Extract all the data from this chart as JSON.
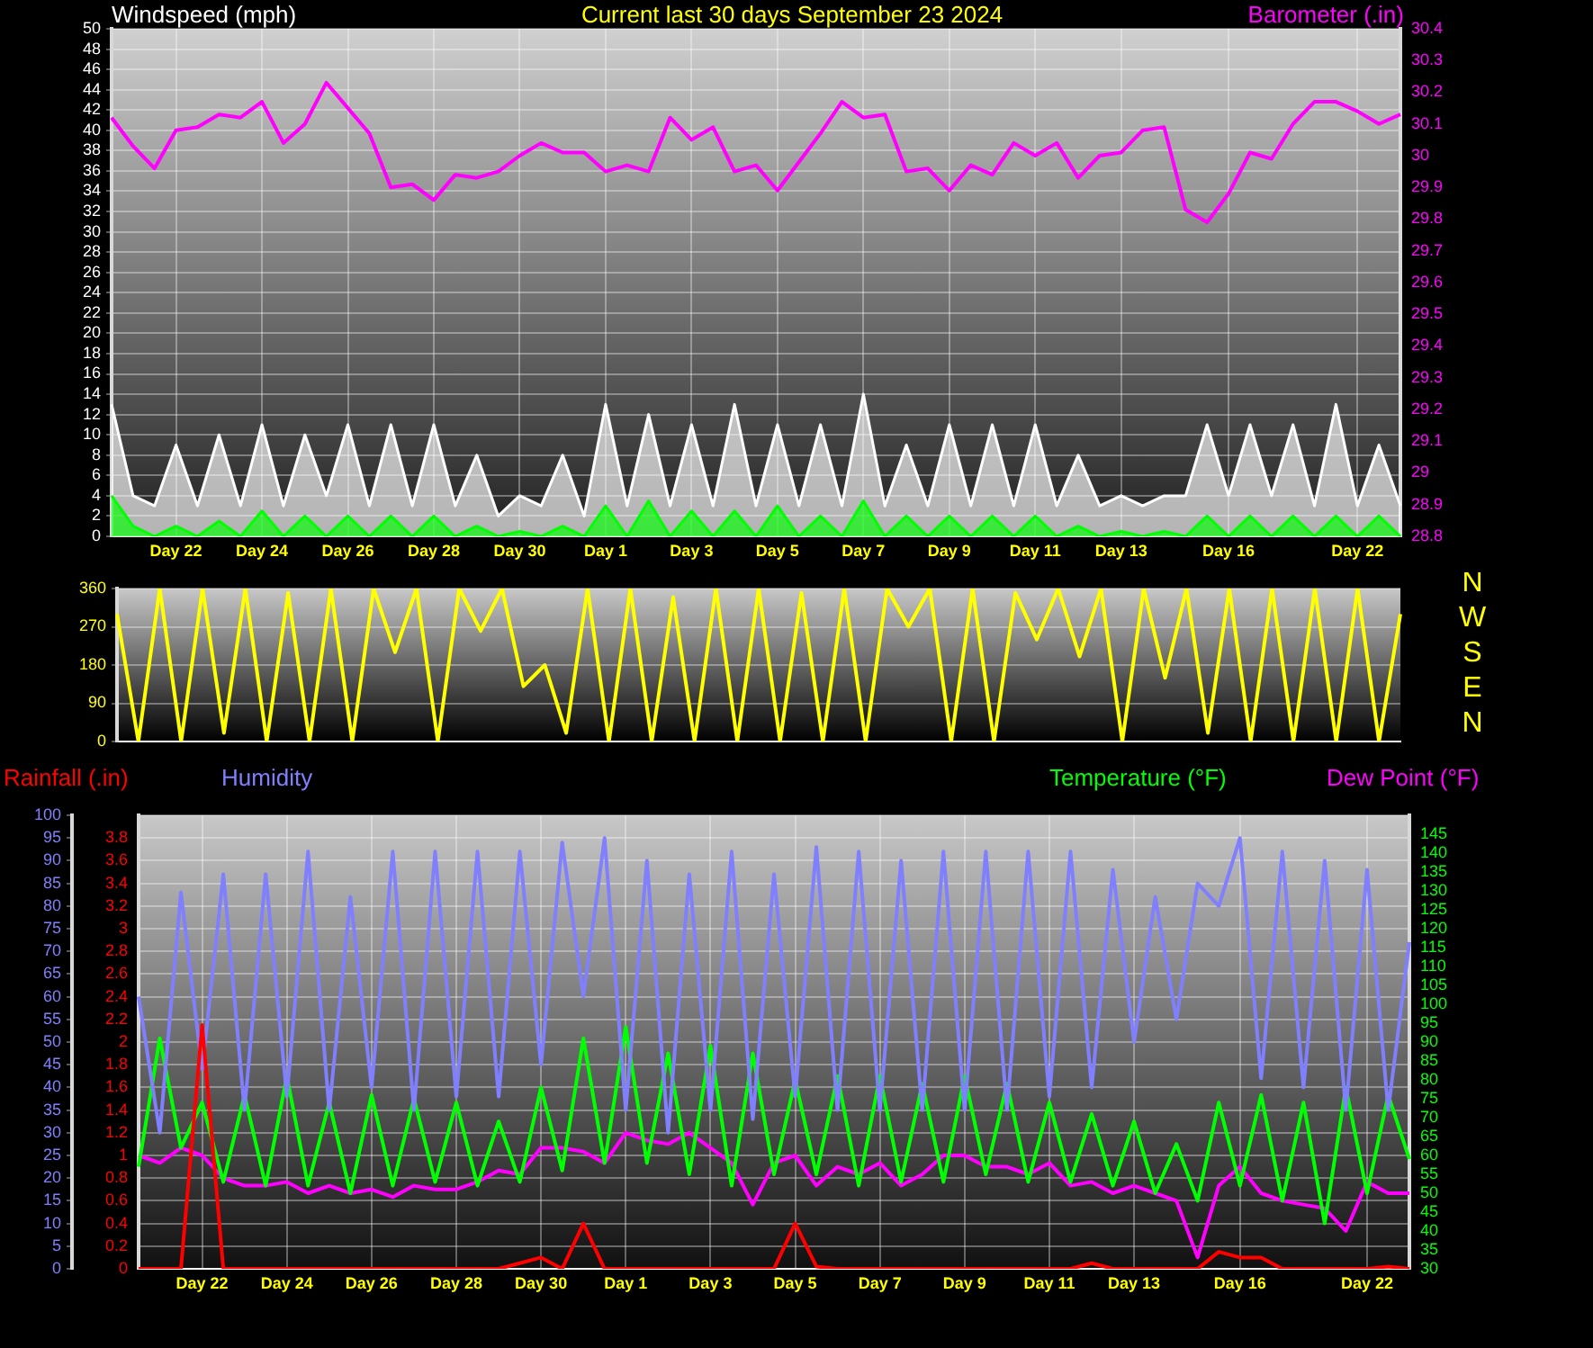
{
  "chart_data": [
    {
      "type": "line",
      "title": "Current last 30 days September 23 2024",
      "ylabel": "Windspeed (mph)",
      "y2label": "Barometer (.in)",
      "categories": [
        null,
        null,
        null,
        "Day 22",
        null,
        null,
        null,
        "Day 24",
        null,
        null,
        null,
        "Day 26",
        null,
        null,
        null,
        "Day 28",
        null,
        null,
        null,
        "Day 30",
        null,
        null,
        null,
        "Day 1",
        null,
        null,
        null,
        "Day 3",
        null,
        null,
        null,
        "Day 5",
        null,
        null,
        null,
        "Day 7",
        null,
        null,
        null,
        "Day 9",
        null,
        null,
        null,
        "Day 11",
        null,
        null,
        null,
        "Day 13",
        null,
        null,
        null,
        null,
        "Day 16",
        null,
        null,
        null,
        null,
        null,
        "Day 22",
        null,
        null
      ],
      "ylim": [
        0,
        50
      ],
      "yticks": [
        0,
        2,
        4,
        6,
        8,
        10,
        12,
        14,
        16,
        18,
        20,
        22,
        24,
        26,
        28,
        30,
        32,
        34,
        36,
        38,
        40,
        42,
        44,
        46,
        48,
        50
      ],
      "y2lim": [
        28.8,
        30.4
      ],
      "y2ticks": [
        28.8,
        28.9,
        29,
        29.1,
        29.2,
        29.3,
        29.4,
        29.5,
        29.6,
        29.7,
        29.8,
        29.9,
        30,
        30.1,
        30.2,
        30.3,
        30.4
      ],
      "grid": true,
      "series": [
        {
          "color": "#ff00ff",
          "axis": "y2",
          "values": [
            30.12,
            30.03,
            29.96,
            30.08,
            30.09,
            30.13,
            30.12,
            30.17,
            30.04,
            30.1,
            30.23,
            30.15,
            30.07,
            29.9,
            29.91,
            29.86,
            29.94,
            29.93,
            29.95,
            30,
            30.04,
            30.01,
            30.01,
            29.95,
            29.97,
            29.95,
            30.12,
            30.05,
            30.09,
            29.95,
            29.97,
            29.89,
            29.98,
            30.07,
            30.17,
            30.12,
            30.13,
            29.95,
            29.96,
            29.89,
            29.97,
            29.94,
            30.04,
            30,
            30.04,
            29.93,
            30,
            30.01,
            30.08,
            30.09,
            29.83,
            29.79,
            29.88,
            30.01,
            29.99,
            30.1,
            30.17,
            30.17,
            30.14,
            30.1,
            30.13
          ]
        },
        {
          "type": "area",
          "color": "#00ff00",
          "values": [
            4,
            1,
            0,
            1,
            0,
            1.5,
            0,
            2.5,
            0,
            2,
            0,
            2,
            0,
            2,
            0,
            2,
            0,
            1,
            0,
            0.5,
            0,
            1,
            0,
            3,
            0,
            3.5,
            0,
            2.5,
            0,
            2.5,
            0,
            3,
            0,
            2,
            0,
            3.5,
            0,
            2,
            0,
            2,
            0,
            2,
            0,
            2,
            0,
            1,
            0,
            0.5,
            0,
            0.5,
            0,
            2,
            0,
            2,
            0,
            2,
            0,
            2,
            0,
            2,
            0
          ]
        },
        {
          "type": "area",
          "color": "#ffffff",
          "values": [
            13,
            4,
            3,
            9,
            3,
            10,
            3,
            11,
            3,
            10,
            4,
            11,
            3,
            11,
            3,
            11,
            3,
            8,
            2,
            4,
            3,
            8,
            2,
            13,
            3,
            12,
            3,
            11,
            3,
            13,
            3,
            11,
            3,
            11,
            3,
            14,
            3,
            9,
            3,
            11,
            3,
            11,
            3,
            11,
            3,
            8,
            3,
            4,
            3,
            4,
            4,
            11,
            4,
            11,
            4,
            11,
            3,
            13,
            3,
            9,
            3
          ]
        }
      ]
    },
    {
      "type": "line",
      "tick_labels": "y",
      "grid": "y",
      "categories": [
        null,
        null,
        null,
        null,
        null,
        null,
        null,
        null,
        null,
        null,
        null,
        null,
        null,
        null,
        null,
        null,
        null,
        null,
        null,
        null,
        null,
        null,
        null,
        null,
        null,
        null,
        null,
        null,
        null,
        null,
        null,
        null,
        null,
        null,
        null,
        null,
        null,
        null,
        null,
        null,
        null,
        null,
        null,
        null,
        null,
        null,
        null,
        null,
        null,
        null,
        null,
        null,
        null,
        null,
        null,
        null,
        null,
        null,
        null,
        null,
        null
      ],
      "ylim": [
        0,
        360
      ],
      "yticks": [
        0,
        90,
        180,
        270,
        360
      ],
      "annotations": [
        "N",
        "W",
        "S",
        "E",
        "N"
      ],
      "series": [
        {
          "color": "#ffff00",
          "values": [
            300,
            0,
            360,
            0,
            360,
            20,
            360,
            0,
            350,
            0,
            360,
            0,
            360,
            210,
            360,
            0,
            360,
            260,
            360,
            130,
            180,
            20,
            360,
            0,
            360,
            0,
            340,
            0,
            360,
            0,
            360,
            0,
            350,
            0,
            360,
            0,
            360,
            270,
            360,
            0,
            360,
            0,
            350,
            240,
            360,
            200,
            360,
            0,
            360,
            150,
            360,
            20,
            360,
            0,
            360,
            0,
            360,
            0,
            360,
            0,
            300
          ]
        }
      ]
    },
    {
      "type": "line",
      "legend": "top",
      "grid": true,
      "categories": [
        null,
        null,
        null,
        "Day 22",
        null,
        null,
        null,
        "Day 24",
        null,
        null,
        null,
        "Day 26",
        null,
        null,
        null,
        "Day 28",
        null,
        null,
        null,
        "Day 30",
        null,
        null,
        null,
        "Day 1",
        null,
        null,
        null,
        "Day 3",
        null,
        null,
        null,
        "Day 5",
        null,
        null,
        null,
        "Day 7",
        null,
        null,
        null,
        "Day 9",
        null,
        null,
        null,
        "Day 11",
        null,
        null,
        null,
        "Day 13",
        null,
        null,
        null,
        null,
        "Day 16",
        null,
        null,
        null,
        null,
        null,
        "Day 22",
        null,
        null
      ],
      "ylim": [
        0,
        100
      ],
      "yticks": [
        0,
        5,
        10,
        15,
        20,
        25,
        30,
        35,
        40,
        45,
        50,
        55,
        60,
        65,
        70,
        75,
        80,
        85,
        90,
        95,
        100
      ],
      "y2lim": [
        30,
        150
      ],
      "y2ticks": [
        30,
        35,
        40,
        45,
        50,
        55,
        60,
        65,
        70,
        75,
        80,
        85,
        90,
        95,
        100,
        105,
        110,
        115,
        120,
        125,
        130,
        135,
        140,
        145
      ],
      "y3lim": [
        0,
        4
      ],
      "y3ticks": [
        0,
        0.2,
        0.4,
        0.6,
        0.8,
        1,
        1.2,
        1.4,
        1.6,
        1.8,
        2,
        2.2,
        2.4,
        2.6,
        2.8,
        3,
        3.2,
        3.4,
        3.6,
        3.8
      ],
      "series": [
        {
          "name": "Rainfall (.in)",
          "color": "#ff0000",
          "axis": "y3",
          "values": [
            0,
            0,
            0,
            2.15,
            0,
            0,
            0,
            0,
            0,
            0,
            0,
            0,
            0,
            0,
            0,
            0,
            0,
            0,
            0.05,
            0.1,
            0,
            0.4,
            0,
            0,
            0,
            0,
            0,
            0,
            0,
            0,
            0,
            0.4,
            0.02,
            0,
            0,
            0,
            0,
            0,
            0,
            0,
            0,
            0,
            0,
            0,
            0,
            0.05,
            0,
            0,
            0,
            0,
            0,
            0.15,
            0.1,
            0.1,
            0,
            0,
            0,
            0,
            0,
            0.02,
            0
          ]
        },
        {
          "name": "Humidity",
          "color": "#8080ff",
          "values": [
            60,
            30,
            83,
            44,
            87,
            35,
            87,
            38,
            92,
            35,
            82,
            40,
            92,
            35,
            92,
            38,
            92,
            38,
            92,
            45,
            94,
            60,
            95,
            35,
            90,
            30,
            87,
            35,
            92,
            33,
            87,
            38,
            93,
            35,
            92,
            35,
            90,
            35,
            92,
            35,
            92,
            35,
            92,
            38,
            92,
            40,
            88,
            50,
            82,
            55,
            85,
            80,
            95,
            42,
            92,
            40,
            90,
            35,
            88,
            35,
            72
          ]
        },
        {
          "name": "Temperature (°F)",
          "color": "#00ff00",
          "axis": "y2",
          "values": [
            57,
            91,
            62,
            74,
            53,
            76,
            52,
            81,
            52,
            74,
            50,
            76,
            52,
            75,
            53,
            74,
            52,
            69,
            53,
            78,
            56,
            91,
            58,
            94,
            58,
            87,
            55,
            89,
            52,
            87,
            55,
            80,
            55,
            81,
            52,
            81,
            53,
            79,
            53,
            81,
            55,
            79,
            53,
            74,
            53,
            71,
            52,
            69,
            50,
            63,
            48,
            74,
            52,
            76,
            48,
            74,
            42,
            78,
            50,
            76,
            59
          ]
        },
        {
          "name": "Dew Point (°F)",
          "color": "#ff00ff",
          "axis": "y2",
          "values": [
            60,
            58,
            62,
            60,
            54,
            52,
            52,
            53,
            50,
            52,
            50,
            51,
            49,
            52,
            51,
            51,
            53,
            56,
            55,
            62,
            62,
            61,
            58,
            66,
            64,
            63,
            66,
            62,
            58,
            47,
            58,
            60,
            52,
            57,
            55,
            58,
            52,
            55,
            60,
            60,
            57,
            57,
            55,
            58,
            52,
            53,
            50,
            52,
            50,
            48,
            33,
            52,
            57,
            50,
            48,
            47,
            46,
            40,
            53,
            50,
            50
          ]
        }
      ]
    }
  ]
}
